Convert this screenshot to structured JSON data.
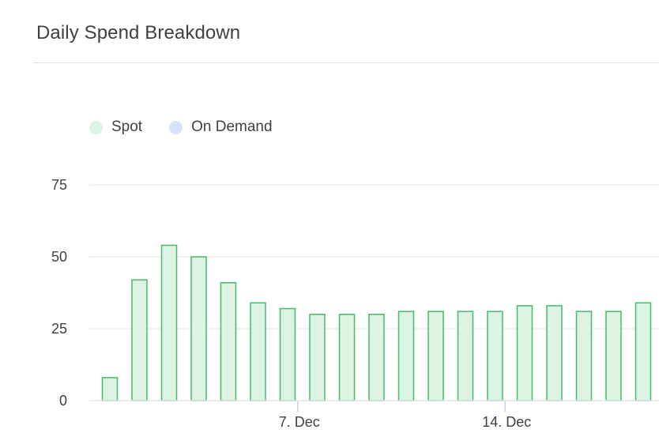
{
  "panel": {
    "title": "Daily Spend Breakdown"
  },
  "colors": {
    "spot_fill": "#dcf2e3",
    "spot_stroke": "#47b96c",
    "on_demand_fill": "#d6e4fb",
    "grid": "#e3e3e5",
    "text": "#3f4043"
  },
  "legend": [
    {
      "label": "Spot",
      "color": "#dcf2e3"
    },
    {
      "label": "On Demand",
      "color": "#d6e4fb"
    }
  ],
  "chart_data": {
    "type": "bar",
    "title": "Daily Spend Breakdown",
    "xlabel": "",
    "ylabel": "",
    "ylim": [
      0,
      75
    ],
    "y_ticks": [
      0,
      25,
      50,
      75
    ],
    "x_tick_labels": [
      {
        "day": 7,
        "label": "7. Dec"
      },
      {
        "day": 14,
        "label": "14. Dec"
      }
    ],
    "x_days": [
      1,
      2,
      3,
      4,
      5,
      6,
      7,
      8,
      9,
      10,
      11,
      12,
      13,
      14,
      15,
      16,
      17,
      18,
      19
    ],
    "grid": true,
    "legend_position": "top-left",
    "series": [
      {
        "name": "Spot",
        "values": [
          8,
          42,
          54,
          50,
          41,
          34,
          32,
          30,
          30,
          30,
          31,
          31,
          31,
          31,
          33,
          33,
          31,
          31,
          34
        ]
      },
      {
        "name": "On Demand",
        "values": [
          0,
          0,
          0,
          0,
          0,
          0,
          0,
          0,
          0,
          0,
          0,
          0,
          0,
          0,
          0,
          0,
          0,
          0,
          0
        ]
      }
    ]
  }
}
